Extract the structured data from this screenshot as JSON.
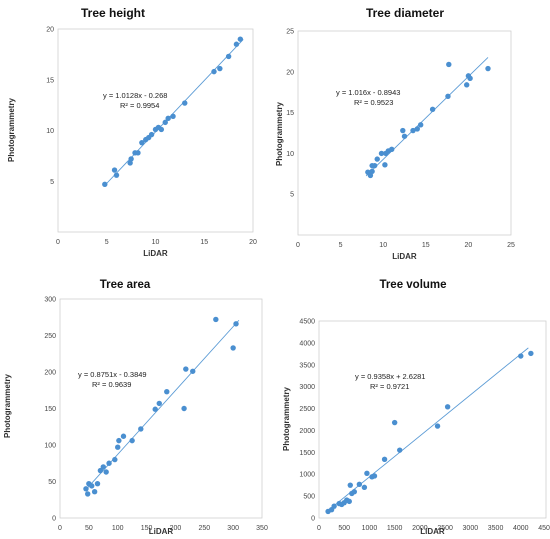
{
  "chart_data": [
    {
      "type": "scatter",
      "title": "Tree height",
      "xlabel": "LiDAR",
      "ylabel": "Photogrammetry",
      "xlim": [
        0,
        20
      ],
      "ylim": [
        0,
        20
      ],
      "xticks": [
        0,
        5,
        10,
        15,
        20
      ],
      "yticks": [
        5,
        10,
        15,
        20
      ],
      "grid": false,
      "equation": "y = 1.0128x - 0.268",
      "r2": "R² = 0.9954",
      "trendline": {
        "slope": 1.0128,
        "intercept": -0.268,
        "x_range": [
          4.8,
          19
        ]
      },
      "points": [
        [
          4.8,
          4.7
        ],
        [
          5.8,
          6.1
        ],
        [
          6.0,
          5.6
        ],
        [
          7.4,
          6.8
        ],
        [
          7.5,
          7.2
        ],
        [
          7.9,
          7.8
        ],
        [
          8.2,
          7.8
        ],
        [
          8.6,
          8.8
        ],
        [
          9.0,
          9.1
        ],
        [
          9.3,
          9.3
        ],
        [
          9.6,
          9.6
        ],
        [
          10.0,
          10.1
        ],
        [
          10.3,
          10.3
        ],
        [
          10.6,
          10.1
        ],
        [
          11.0,
          10.8
        ],
        [
          11.3,
          11.2
        ],
        [
          11.8,
          11.4
        ],
        [
          13.0,
          12.7
        ],
        [
          16.0,
          15.8
        ],
        [
          16.6,
          16.1
        ],
        [
          17.5,
          17.3
        ],
        [
          18.3,
          18.5
        ],
        [
          18.7,
          19.0
        ]
      ]
    },
    {
      "type": "scatter",
      "title": "Tree diameter",
      "xlabel": "LiDAR",
      "ylabel": "Photogrammetry",
      "xlim": [
        0,
        25
      ],
      "ylim": [
        0,
        25
      ],
      "xticks": [
        0,
        5,
        10,
        15,
        20,
        25
      ],
      "yticks": [
        5,
        10,
        15,
        20,
        25
      ],
      "grid": false,
      "equation": "y = 1.016x - 0.8943",
      "r2": "R² = 0.9523",
      "trendline": {
        "slope": 1.016,
        "intercept": -0.8943,
        "x_range": [
          8.0,
          22.3
        ]
      },
      "points": [
        [
          8.2,
          7.7
        ],
        [
          8.5,
          7.3
        ],
        [
          8.7,
          7.8
        ],
        [
          8.7,
          8.5
        ],
        [
          9.0,
          8.5
        ],
        [
          9.3,
          9.3
        ],
        [
          9.8,
          10.0
        ],
        [
          10.2,
          8.6
        ],
        [
          10.3,
          10.0
        ],
        [
          10.6,
          10.3
        ],
        [
          11.0,
          10.5
        ],
        [
          12.3,
          12.8
        ],
        [
          12.5,
          12.1
        ],
        [
          13.5,
          12.8
        ],
        [
          14.0,
          13.0
        ],
        [
          14.4,
          13.5
        ],
        [
          15.8,
          15.4
        ],
        [
          17.6,
          17.0
        ],
        [
          17.7,
          20.9
        ],
        [
          19.8,
          18.4
        ],
        [
          20.0,
          19.5
        ],
        [
          20.2,
          19.2
        ],
        [
          22.3,
          20.4
        ]
      ]
    },
    {
      "type": "scatter",
      "title": "Tree area",
      "xlabel": "LiDAR",
      "ylabel": "Photogrammetry",
      "xlim": [
        0,
        350
      ],
      "ylim": [
        0,
        300
      ],
      "xticks": [
        0,
        50,
        100,
        150,
        200,
        250,
        300,
        350
      ],
      "yticks": [
        0,
        50,
        100,
        150,
        200,
        250,
        300
      ],
      "grid": false,
      "equation": "y = 0.8751x - 0.3849",
      "r2": "R² = 0.9639",
      "trendline": {
        "slope": 0.8751,
        "intercept": -0.3849,
        "x_range": [
          45,
          310
        ]
      },
      "points": [
        [
          45,
          40
        ],
        [
          48,
          33
        ],
        [
          50,
          47
        ],
        [
          55,
          44
        ],
        [
          60,
          36
        ],
        [
          65,
          47
        ],
        [
          70,
          65
        ],
        [
          75,
          70
        ],
        [
          80,
          63
        ],
        [
          85,
          75
        ],
        [
          95,
          80
        ],
        [
          100,
          97
        ],
        [
          102,
          106
        ],
        [
          110,
          112
        ],
        [
          125,
          106
        ],
        [
          140,
          122
        ],
        [
          165,
          149
        ],
        [
          172,
          157
        ],
        [
          185,
          173
        ],
        [
          215,
          150
        ],
        [
          218,
          204
        ],
        [
          230,
          201
        ],
        [
          270,
          272
        ],
        [
          300,
          233
        ],
        [
          305,
          266
        ]
      ]
    },
    {
      "type": "scatter",
      "title": "Tree volume",
      "xlabel": "LiDAR",
      "ylabel": "Photogrammetry",
      "xlim": [
        0,
        4500
      ],
      "ylim": [
        0,
        4500
      ],
      "xticks": [
        0,
        500,
        1000,
        1500,
        2000,
        2500,
        3000,
        3500,
        4000,
        4500
      ],
      "yticks": [
        0,
        500,
        1000,
        1500,
        2000,
        2500,
        3000,
        3500,
        4000,
        4500
      ],
      "grid": false,
      "equation": "y = 0.9358x + 2.6281",
      "r2": "R² = 0.9721",
      "trendline": {
        "slope": 0.9358,
        "intercept": 2.6281,
        "x_range": [
          150,
          4150
        ]
      },
      "points": [
        [
          180,
          150
        ],
        [
          250,
          190
        ],
        [
          300,
          270
        ],
        [
          400,
          330
        ],
        [
          450,
          310
        ],
        [
          500,
          350
        ],
        [
          550,
          410
        ],
        [
          600,
          380
        ],
        [
          620,
          750
        ],
        [
          650,
          560
        ],
        [
          700,
          600
        ],
        [
          800,
          770
        ],
        [
          900,
          700
        ],
        [
          950,
          1020
        ],
        [
          1050,
          940
        ],
        [
          1100,
          960
        ],
        [
          1300,
          1340
        ],
        [
          1500,
          2180
        ],
        [
          1600,
          1550
        ],
        [
          2350,
          2100
        ],
        [
          2550,
          2540
        ],
        [
          4000,
          3700
        ],
        [
          4200,
          3760
        ]
      ]
    }
  ]
}
